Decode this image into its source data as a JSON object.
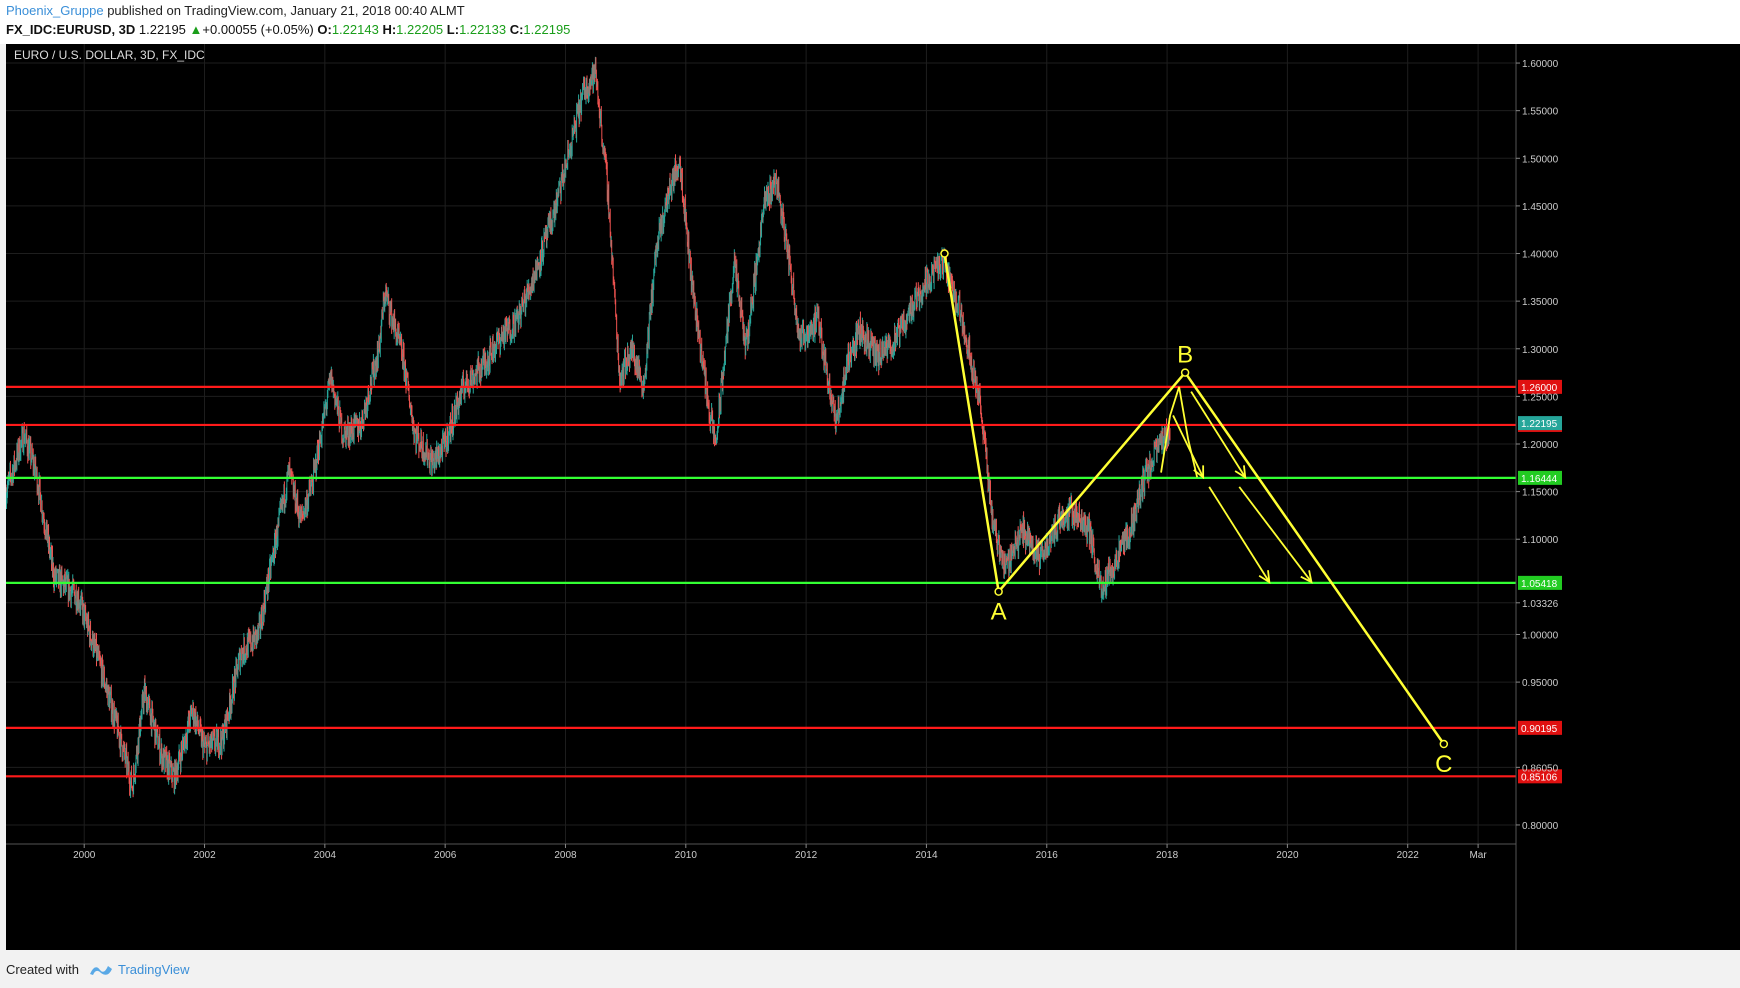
{
  "header": {
    "author": "Phoenix_Gruppe",
    "published": "published on TradingView.com, January 21, 2018 00:40 ALMT",
    "symbol": "FX_IDC:EURUSD, 3D",
    "last": "1.22195",
    "change_arrow": "▲",
    "change": "+0.00055 (+0.05%)",
    "o_label": "O:",
    "o": "1.22143",
    "h_label": "H:",
    "h": "1.22205",
    "l_label": "L:",
    "l": "1.22133",
    "c_label": "C:",
    "c": "1.22195"
  },
  "footer": {
    "created_with": "Created with",
    "brand": "TradingView"
  },
  "colors": {
    "up": "#26a69a",
    "down": "#ef5350",
    "yellow": "#ffff33",
    "red_line": "#ff1a1a",
    "green_line": "#33ff33",
    "price_green": "#1a9e1a"
  },
  "chart_data": {
    "type": "candlestick",
    "title": "EURO / U.S. DOLLAR, 3D, FX_IDC",
    "ylim": [
      0.78,
      1.62
    ],
    "xlim": [
      1998.7,
      2023.8
    ],
    "y_ticks": [
      "1.60000",
      "1.55000",
      "1.50000",
      "1.45000",
      "1.40000",
      "1.35000",
      "1.30000",
      "1.25000",
      "1.20000",
      "1.15000",
      "1.10000",
      "1.03326",
      "1.00000",
      "0.95000",
      "0.86050",
      "0.80000"
    ],
    "y_tick_values": [
      1.6,
      1.55,
      1.5,
      1.45,
      1.4,
      1.35,
      1.3,
      1.25,
      1.2,
      1.15,
      1.1,
      1.03326,
      1.0,
      0.95,
      0.8605,
      0.8
    ],
    "x_ticks": [
      "2000",
      "2002",
      "2004",
      "2006",
      "2008",
      "2010",
      "2012",
      "2014",
      "2016",
      "2018",
      "2020",
      "2022",
      "Mar"
    ],
    "x_tick_values": [
      2000,
      2002,
      2004,
      2006,
      2008,
      2010,
      2012,
      2014,
      2016,
      2018,
      2020,
      2022,
      2023.17
    ],
    "price_path": [
      [
        1998.7,
        1.15
      ],
      [
        1999.0,
        1.21
      ],
      [
        1999.2,
        1.17
      ],
      [
        1999.5,
        1.06
      ],
      [
        1999.9,
        1.04
      ],
      [
        2000.3,
        0.96
      ],
      [
        2000.6,
        0.89
      ],
      [
        2000.8,
        0.84
      ],
      [
        2001.0,
        0.94
      ],
      [
        2001.3,
        0.87
      ],
      [
        2001.5,
        0.85
      ],
      [
        2001.8,
        0.92
      ],
      [
        2002.0,
        0.88
      ],
      [
        2002.3,
        0.89
      ],
      [
        2002.6,
        0.98
      ],
      [
        2002.9,
        1.0
      ],
      [
        2003.1,
        1.07
      ],
      [
        2003.4,
        1.17
      ],
      [
        2003.6,
        1.12
      ],
      [
        2003.8,
        1.16
      ],
      [
        2004.1,
        1.27
      ],
      [
        2004.3,
        1.21
      ],
      [
        2004.6,
        1.22
      ],
      [
        2004.9,
        1.3
      ],
      [
        2005.0,
        1.36
      ],
      [
        2005.3,
        1.29
      ],
      [
        2005.5,
        1.21
      ],
      [
        2005.8,
        1.18
      ],
      [
        2006.0,
        1.2
      ],
      [
        2006.3,
        1.26
      ],
      [
        2006.6,
        1.28
      ],
      [
        2006.9,
        1.31
      ],
      [
        2007.2,
        1.33
      ],
      [
        2007.5,
        1.38
      ],
      [
        2007.8,
        1.44
      ],
      [
        2008.0,
        1.49
      ],
      [
        2008.3,
        1.57
      ],
      [
        2008.5,
        1.59
      ],
      [
        2008.7,
        1.47
      ],
      [
        2008.9,
        1.27
      ],
      [
        2009.1,
        1.3
      ],
      [
        2009.3,
        1.26
      ],
      [
        2009.5,
        1.4
      ],
      [
        2009.7,
        1.46
      ],
      [
        2009.9,
        1.5
      ],
      [
        2010.1,
        1.37
      ],
      [
        2010.4,
        1.23
      ],
      [
        2010.5,
        1.2
      ],
      [
        2010.8,
        1.39
      ],
      [
        2011.0,
        1.3
      ],
      [
        2011.3,
        1.45
      ],
      [
        2011.5,
        1.48
      ],
      [
        2011.7,
        1.4
      ],
      [
        2011.9,
        1.31
      ],
      [
        2012.2,
        1.33
      ],
      [
        2012.5,
        1.22
      ],
      [
        2012.7,
        1.29
      ],
      [
        2012.9,
        1.32
      ],
      [
        2013.2,
        1.29
      ],
      [
        2013.5,
        1.31
      ],
      [
        2013.8,
        1.35
      ],
      [
        2014.1,
        1.38
      ],
      [
        2014.3,
        1.39
      ],
      [
        2014.6,
        1.33
      ],
      [
        2014.9,
        1.24
      ],
      [
        2015.1,
        1.12
      ],
      [
        2015.3,
        1.07
      ],
      [
        2015.6,
        1.11
      ],
      [
        2015.9,
        1.08
      ],
      [
        2016.2,
        1.12
      ],
      [
        2016.4,
        1.13
      ],
      [
        2016.7,
        1.11
      ],
      [
        2016.9,
        1.05
      ],
      [
        2017.1,
        1.07
      ],
      [
        2017.4,
        1.11
      ],
      [
        2017.6,
        1.16
      ],
      [
        2017.8,
        1.19
      ],
      [
        2018.0,
        1.21
      ],
      [
        2018.05,
        1.22195
      ]
    ],
    "horizontal_levels": [
      {
        "value": 1.26,
        "label": "1.26000",
        "color": "red"
      },
      {
        "value": 1.22,
        "label": "1.22000",
        "color": "red"
      },
      {
        "value": 1.16444,
        "label": "1.16444",
        "color": "green"
      },
      {
        "value": 1.05418,
        "label": "1.05418",
        "color": "green"
      },
      {
        "value": 0.90195,
        "label": "0.90195",
        "color": "red"
      },
      {
        "value": 0.85106,
        "label": "0.85106",
        "color": "red"
      }
    ],
    "last_price": {
      "value": 1.22195,
      "label": "1.22195"
    },
    "wave_points": [
      {
        "name": "",
        "date": 2014.3,
        "price": 1.4
      },
      {
        "name": "A",
        "date": 2015.2,
        "price": 1.045
      },
      {
        "name": "B",
        "date": 2018.3,
        "price": 1.275
      },
      {
        "name": "C",
        "date": 2022.6,
        "price": 0.885
      }
    ],
    "projection": [
      [
        2017.9,
        1.17
      ],
      [
        2018.05,
        1.23
      ],
      [
        2018.2,
        1.26
      ],
      [
        2018.35,
        1.205
      ],
      [
        2018.5,
        1.165
      ]
    ],
    "arrows": [
      {
        "from": [
          2018.1,
          1.23
        ],
        "to": [
          2018.6,
          1.165
        ]
      },
      {
        "from": [
          2018.4,
          1.255
        ],
        "to": [
          2019.3,
          1.165
        ]
      },
      {
        "from": [
          2018.7,
          1.155
        ],
        "to": [
          2019.7,
          1.055
        ]
      },
      {
        "from": [
          2019.2,
          1.155
        ],
        "to": [
          2020.4,
          1.055
        ]
      }
    ]
  }
}
